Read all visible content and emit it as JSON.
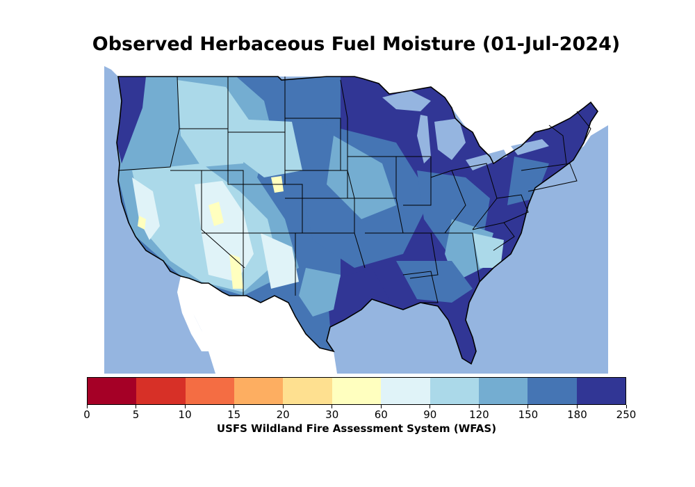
{
  "title": "Observed Herbaceous Fuel Moisture (01-Jul-2024)",
  "colorbar": {
    "label": "USFS Wildland Fire Assessment System (WFAS)",
    "ticks": [
      "0",
      "5",
      "10",
      "15",
      "20",
      "30",
      "60",
      "90",
      "120",
      "150",
      "180",
      "250"
    ],
    "colors": [
      "#a50026",
      "#d73027",
      "#f46d43",
      "#fdae61",
      "#fee090",
      "#ffffbf",
      "#e0f3f8",
      "#abd9e9",
      "#74add1",
      "#4575b4",
      "#313695"
    ]
  },
  "map": {
    "ocean_color": "#95b5e0",
    "land_outside_color": "#ffffff",
    "lake_color": "#95b5e0"
  }
}
